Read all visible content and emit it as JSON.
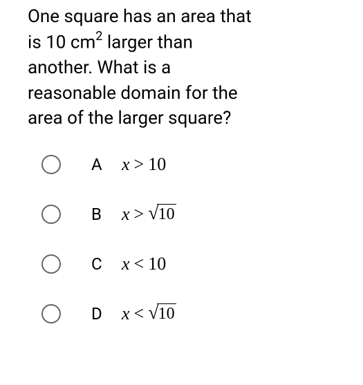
{
  "question": {
    "line1_part1": "One square has an area that",
    "line2_part1": "is 10 cm",
    "line2_super": "2",
    "line2_part2": " larger than",
    "line3": "another. What is a",
    "line4": "reasonable domain for the",
    "line5": "area of the larger square?"
  },
  "options": [
    {
      "letter": "A",
      "var": "x",
      "op": ">",
      "has_sqrt": false,
      "value": "10"
    },
    {
      "letter": "B",
      "var": "x",
      "op": ">",
      "has_sqrt": true,
      "value": "10"
    },
    {
      "letter": "C",
      "var": "x",
      "op": "<",
      "has_sqrt": false,
      "value": "10"
    },
    {
      "letter": "D",
      "var": "x",
      "op": "<",
      "has_sqrt": true,
      "value": "10"
    }
  ],
  "style": {
    "radio_border_color": "#666666",
    "text_color": "#000000",
    "background": "#ffffff",
    "question_fontsize": 26,
    "option_fontsize": 26,
    "math_font": "Times New Roman"
  }
}
